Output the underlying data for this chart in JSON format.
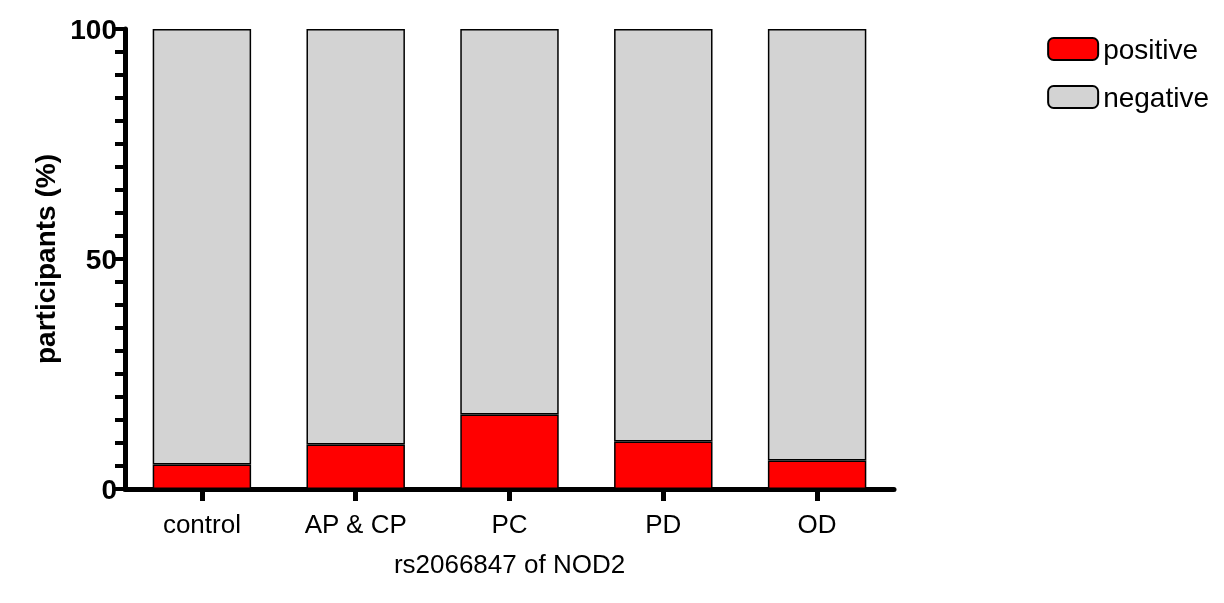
{
  "chart_data": {
    "type": "bar",
    "stacked": true,
    "xlabel": "rs2066847 of NOD2",
    "ylabel": "participants (%)",
    "categories": [
      "control",
      "AP & CP",
      "PC",
      "PD",
      "OD"
    ],
    "series": [
      {
        "name": "positive",
        "color": "#ff0000",
        "values": [
          5.3,
          9.7,
          16.2,
          10.3,
          6.2
        ]
      },
      {
        "name": "negative",
        "color": "#d3d3d3",
        "values": [
          94.7,
          90.3,
          83.8,
          89.7,
          93.8
        ]
      }
    ],
    "ylim": [
      0,
      100
    ],
    "yticks": [
      0,
      {
        "value": 5,
        "label": null
      },
      {
        "value": 10,
        "label": null
      },
      {
        "value": 15,
        "label": null
      },
      {
        "value": 20,
        "label": null
      },
      {
        "value": 25,
        "label": null
      },
      {
        "value": 30,
        "label": null
      },
      {
        "value": 35,
        "label": null
      },
      {
        "value": 40,
        "label": null
      },
      {
        "value": 45,
        "label": null
      },
      50,
      {
        "value": 55,
        "label": null
      },
      {
        "value": 60,
        "label": null
      },
      {
        "value": 65,
        "label": null
      },
      {
        "value": 70,
        "label": null
      },
      {
        "value": 75,
        "label": null
      },
      {
        "value": 80,
        "label": null
      },
      {
        "value": 85,
        "label": null
      },
      {
        "value": 90,
        "label": null
      },
      {
        "value": 95,
        "label": null
      },
      100
    ],
    "grid": false,
    "legend": "top right"
  }
}
